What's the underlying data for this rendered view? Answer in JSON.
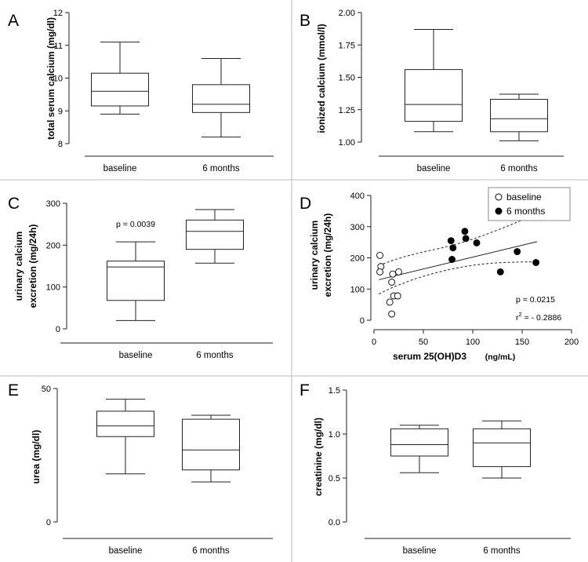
{
  "figure": {
    "background": "#ffffff",
    "divider_color": "#bbbbbb",
    "line_color": "#222222"
  },
  "chart_data": [
    {
      "panel": "A",
      "type": "box",
      "ylabel": "total serum calcium (mg/dl)",
      "categories": [
        "baseline",
        "6 months"
      ],
      "yticks": [
        "8",
        "9",
        "10",
        "11",
        "12"
      ],
      "ylim": [
        8,
        12
      ],
      "boxes": [
        {
          "name": "baseline",
          "min": 8.9,
          "q1": 9.15,
          "median": 9.6,
          "q3": 10.15,
          "max": 11.1
        },
        {
          "name": "6 months",
          "min": 8.2,
          "q1": 8.95,
          "median": 9.2,
          "q3": 9.8,
          "max": 10.6
        }
      ]
    },
    {
      "panel": "B",
      "type": "box",
      "ylabel": "ionized calcium (mmol/l)",
      "categories": [
        "baseline",
        "6 months"
      ],
      "yticks": [
        "1.00",
        "1.25",
        "1.50",
        "1.75",
        "2.00"
      ],
      "ylim": [
        1.0,
        2.0
      ],
      "boxes": [
        {
          "name": "baseline",
          "min": 1.08,
          "q1": 1.16,
          "median": 1.29,
          "q3": 1.56,
          "max": 1.87
        },
        {
          "name": "6 months",
          "min": 1.01,
          "q1": 1.08,
          "median": 1.18,
          "q3": 1.33,
          "max": 1.37
        }
      ]
    },
    {
      "panel": "C",
      "type": "box",
      "ylabel_lines": [
        "urinary calcium",
        "excretion (mg/24h)"
      ],
      "categories": [
        "baseline",
        "6 months"
      ],
      "yticks": [
        "0",
        "100",
        "200",
        "300"
      ],
      "ylim": [
        0,
        300
      ],
      "annotation": "p = 0.0039",
      "boxes": [
        {
          "name": "baseline",
          "min": 20,
          "q1": 68,
          "median": 148,
          "q3": 162,
          "max": 208
        },
        {
          "name": "6 months",
          "min": 157,
          "q1": 190,
          "median": 233,
          "q3": 260,
          "max": 285
        }
      ]
    },
    {
      "panel": "D",
      "type": "scatter",
      "ylabel_lines": [
        "urinary calcium",
        "excretion (mg/24h)"
      ],
      "xlabel": "serum 25(OH)D3",
      "xlabel_unit": "(ng/mL)",
      "xticks": [
        "0",
        "50",
        "100",
        "150",
        "200"
      ],
      "yticks": [
        "0",
        "100",
        "200",
        "300",
        "400"
      ],
      "xlim": [
        0,
        200
      ],
      "ylim": [
        0,
        400
      ],
      "legend": [
        "baseline",
        "6 months"
      ],
      "annotations": [
        "p = 0.0215",
        "r",
        "2",
        " = - 0.2886"
      ],
      "series": [
        {
          "name": "baseline",
          "marker": "open",
          "x": [
            6,
            7,
            6,
            19,
            18,
            25,
            20,
            24,
            16,
            18
          ],
          "y": [
            208,
            172,
            155,
            148,
            122,
            155,
            78,
            78,
            58,
            20
          ]
        },
        {
          "name": "6 months",
          "marker": "filled",
          "x": [
            78,
            80,
            79,
            92,
            93,
            104,
            128,
            145,
            164
          ],
          "y": [
            255,
            232,
            195,
            285,
            262,
            248,
            155,
            220,
            185
          ]
        }
      ],
      "regression": {
        "x": [
          5,
          165
        ],
        "y": [
          130,
          252
        ]
      },
      "confidence_band": {
        "x": [
          5,
          10,
          20,
          30,
          40,
          50,
          60,
          70,
          80,
          90,
          100,
          110,
          120,
          130,
          140,
          150,
          160,
          165
        ],
        "upper": [
          176,
          182,
          193,
          203,
          211,
          219,
          226,
          233,
          241,
          250,
          260,
          271,
          283,
          295,
          308,
          321,
          334,
          340
        ],
        "lower": [
          84,
          92,
          107,
          119,
          131,
          141,
          150,
          158,
          165,
          171,
          176,
          180,
          183,
          185,
          186,
          187,
          187,
          187
        ]
      }
    },
    {
      "panel": "E",
      "type": "box",
      "ylabel": "urea (mg/dl)",
      "categories": [
        "baseline",
        "6 months"
      ],
      "yticks": [
        "0",
        "50"
      ],
      "ylim": [
        0,
        50
      ],
      "boxes": [
        {
          "name": "baseline",
          "min": 18,
          "q1": 32,
          "median": 36,
          "q3": 41.5,
          "max": 46
        },
        {
          "name": "6 months",
          "min": 15,
          "q1": 19.5,
          "median": 27,
          "q3": 38.5,
          "max": 40
        }
      ]
    },
    {
      "panel": "F",
      "type": "box",
      "ylabel": "creatinine (mg/dl)",
      "categories": [
        "baseline",
        "6 months"
      ],
      "yticks": [
        "0.0",
        "0.5",
        "1.0",
        "1.5"
      ],
      "ylim": [
        0,
        1.5
      ],
      "boxes": [
        {
          "name": "baseline",
          "min": 0.56,
          "q1": 0.75,
          "median": 0.88,
          "q3": 1.06,
          "max": 1.1
        },
        {
          "name": "6 months",
          "min": 0.5,
          "q1": 0.63,
          "median": 0.9,
          "q3": 1.06,
          "max": 1.15
        }
      ]
    }
  ]
}
